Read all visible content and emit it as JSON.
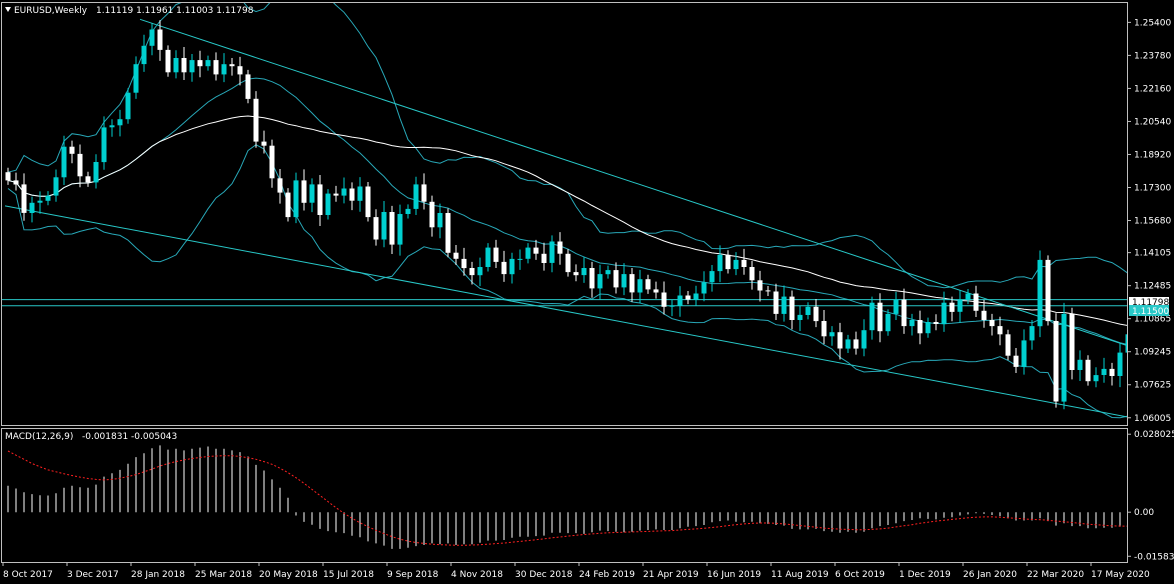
{
  "header": {
    "symbol": "EURUSD,Weekly",
    "ohlc": "1.11119 1.11961 1.11003 1.11798"
  },
  "indicator_header": {
    "name": "MACD(12,26,9)",
    "values": "-0.001831 -0.005043"
  },
  "colors": {
    "background": "#000000",
    "candle_up": "#00d0d0",
    "candle_down": "#ffffff",
    "trendline": "#28c8c8",
    "bollinger": "#28a8b8",
    "moving_average": "#ffffff",
    "macd_hist": "#ffffff",
    "macd_signal": "#ff2020",
    "price_label_bg": "#28c8c8"
  },
  "price_axis": {
    "ticks": [
      "1.25400",
      "1.23780",
      "1.22160",
      "1.20540",
      "1.18920",
      "1.17300",
      "1.15680",
      "1.14105",
      "1.12485",
      "1.10865",
      "1.09245",
      "1.07625",
      "1.06005"
    ],
    "current_labels": [
      "1.11798",
      "1.11500"
    ]
  },
  "macd_axis": {
    "ticks": [
      "0.028025",
      "0.00",
      "-0.015839"
    ]
  },
  "time_axis": {
    "ticks": [
      "8 Oct 2017",
      "3 Dec 2017",
      "28 Jan 2018",
      "25 Mar 2018",
      "20 May 2018",
      "15 Jul 2018",
      "9 Sep 2018",
      "4 Nov 2018",
      "30 Dec 2018",
      "24 Feb 2019",
      "21 Apr 2019",
      "16 Jun 2019",
      "11 Aug 2019",
      "6 Oct 2019",
      "1 Dec 2019",
      "26 Jan 2020",
      "22 Mar 2020",
      "17 May 2020"
    ]
  },
  "chart_data": {
    "type": "candlestick",
    "timeframe": "Weekly",
    "ylim": [
      1.0565,
      1.2635
    ],
    "macd_ylim": [
      -0.0179,
      0.0299
    ],
    "x_start": "8 Oct 2017",
    "x_end": "24 May 2020",
    "closes": [
      1.1765,
      1.1745,
      1.1605,
      1.1655,
      1.1665,
      1.169,
      1.178,
      1.193,
      1.1895,
      1.1785,
      1.1755,
      1.1855,
      1.2025,
      1.2035,
      1.2065,
      1.2195,
      1.2335,
      1.2425,
      1.2505,
      1.2405,
      1.2295,
      1.2365,
      1.2295,
      1.2355,
      1.2325,
      1.2355,
      1.2285,
      1.2335,
      1.2325,
      1.2285,
      1.2165,
      1.1955,
      1.1935,
      1.1775,
      1.1705,
      1.1585,
      1.1765,
      1.1655,
      1.1745,
      1.1595,
      1.17,
      1.169,
      1.1725,
      1.1665,
      1.1735,
      1.1585,
      1.1475,
      1.161,
      1.145,
      1.16,
      1.1625,
      1.1745,
      1.166,
      1.1535,
      1.1605,
      1.141,
      1.138,
      1.1335,
      1.13,
      1.134,
      1.1435,
      1.1365,
      1.1305,
      1.138,
      1.138,
      1.1435,
      1.1405,
      1.136,
      1.1465,
      1.1405,
      1.1315,
      1.13,
      1.1335,
      1.1235,
      1.1305,
      1.1325,
      1.124,
      1.1305,
      1.1215,
      1.128,
      1.123,
      1.1215,
      1.1145,
      1.115,
      1.12,
      1.118,
      1.121,
      1.1265,
      1.132,
      1.14,
      1.133,
      1.1375,
      1.134,
      1.1275,
      1.1225,
      1.122,
      1.111,
      1.1195,
      1.108,
      1.1105,
      1.1145,
      1.1075,
      1.1,
      1.102,
      1.094,
      1.0985,
      1.094,
      1.103,
      1.1165,
      1.1025,
      1.111,
      1.118,
      1.105,
      1.108,
      1.1015,
      1.107,
      1.106,
      1.1165,
      1.112,
      1.118,
      1.121,
      1.1125,
      1.108,
      1.105,
      1.101,
      1.0905,
      1.085,
      1.098,
      1.105,
      1.1375,
      1.1075,
      1.068,
      1.111,
      1.0835,
      1.0885,
      1.078,
      1.081,
      1.084,
      1.0805,
      1.092,
      1.101,
      1.118
    ],
    "macd_histogram": [
      0.0095,
      0.0085,
      0.0072,
      0.0065,
      0.0061,
      0.006,
      0.0068,
      0.0088,
      0.0095,
      0.009,
      0.0088,
      0.0099,
      0.0128,
      0.014,
      0.0152,
      0.0174,
      0.0198,
      0.0212,
      0.023,
      0.024,
      0.0225,
      0.0228,
      0.0222,
      0.0228,
      0.0232,
      0.0236,
      0.0228,
      0.0228,
      0.0222,
      0.0216,
      0.02,
      0.017,
      0.015,
      0.0118,
      0.0088,
      0.0052,
      -0.0012,
      -0.0035,
      -0.0045,
      -0.006,
      -0.0068,
      -0.0072,
      -0.0075,
      -0.0085,
      -0.009,
      -0.0105,
      -0.0112,
      -0.012,
      -0.0132,
      -0.0132,
      -0.0128,
      -0.0122,
      -0.0118,
      -0.0112,
      -0.0115,
      -0.0112,
      -0.0118,
      -0.0115,
      -0.0115,
      -0.011,
      -0.0102,
      -0.0102,
      -0.01,
      -0.0092,
      -0.0088,
      -0.0088,
      -0.0086,
      -0.0084,
      -0.0074,
      -0.0074,
      -0.0075,
      -0.0075,
      -0.0078,
      -0.0072,
      -0.0066,
      -0.0068,
      -0.007,
      -0.0072,
      -0.007,
      -0.0066,
      -0.0064,
      -0.0062,
      -0.0064,
      -0.0064,
      -0.0058,
      -0.0052,
      -0.005,
      -0.0046,
      -0.0036,
      -0.0032,
      -0.003,
      -0.0034,
      -0.0036,
      -0.0034,
      -0.004,
      -0.0042,
      -0.0046,
      -0.0048,
      -0.006,
      -0.0062,
      -0.0062,
      -0.006,
      -0.0068,
      -0.007,
      -0.0074,
      -0.007,
      -0.0074,
      -0.007,
      -0.0058,
      -0.005,
      -0.0046,
      -0.004,
      -0.0032,
      -0.0028,
      -0.0022,
      -0.0024,
      -0.0026,
      -0.002,
      -0.0018,
      -0.0012,
      -0.0008,
      -0.0004,
      -0.0006,
      -0.001,
      -0.0014,
      -0.0022,
      -0.003,
      -0.003,
      -0.003,
      -0.0022,
      -0.0032,
      -0.0048,
      -0.004,
      -0.005,
      -0.005,
      -0.0058,
      -0.0058,
      -0.0056,
      -0.0056,
      -0.0052,
      -0.004,
      -0.0018
    ],
    "macd_signal": [
      0.022,
      0.0205,
      0.019,
      0.0175,
      0.0163,
      0.0152,
      0.0145,
      0.0138,
      0.0132,
      0.0126,
      0.0121,
      0.0118,
      0.0116,
      0.0118,
      0.0122,
      0.0128,
      0.0135,
      0.0145,
      0.0155,
      0.0166,
      0.0175,
      0.0182,
      0.0188,
      0.0193,
      0.0197,
      0.02,
      0.0202,
      0.0203,
      0.0203,
      0.02,
      0.0196,
      0.019,
      0.0182,
      0.0172,
      0.0158,
      0.0142,
      0.0124,
      0.0104,
      0.0082,
      0.006,
      0.0038,
      0.0016,
      -0.0004,
      -0.0022,
      -0.0038,
      -0.0052,
      -0.0065,
      -0.0077,
      -0.0088,
      -0.0097,
      -0.0104,
      -0.0109,
      -0.0112,
      -0.0115,
      -0.0117,
      -0.0118,
      -0.0119,
      -0.0119,
      -0.0118,
      -0.0117,
      -0.0115,
      -0.0113,
      -0.0111,
      -0.0108,
      -0.0105,
      -0.0102,
      -0.0099,
      -0.0096,
      -0.0092,
      -0.0089,
      -0.0086,
      -0.0083,
      -0.008,
      -0.0078,
      -0.0076,
      -0.0074,
      -0.0073,
      -0.0072,
      -0.0071,
      -0.007,
      -0.0069,
      -0.0068,
      -0.0067,
      -0.0066,
      -0.0064,
      -0.0062,
      -0.006,
      -0.0058,
      -0.0055,
      -0.0052,
      -0.0048,
      -0.0045,
      -0.0042,
      -0.004,
      -0.0039,
      -0.0039,
      -0.004,
      -0.0042,
      -0.0045,
      -0.0048,
      -0.0051,
      -0.0054,
      -0.0057,
      -0.0059,
      -0.0061,
      -0.0062,
      -0.0063,
      -0.0063,
      -0.0062,
      -0.006,
      -0.0057,
      -0.0053,
      -0.0049,
      -0.0045,
      -0.004,
      -0.0036,
      -0.0032,
      -0.0029,
      -0.0026,
      -0.0023,
      -0.002,
      -0.0018,
      -0.0017,
      -0.0017,
      -0.0018,
      -0.002,
      -0.0022,
      -0.0024,
      -0.0026,
      -0.0027,
      -0.0029,
      -0.0032,
      -0.0034,
      -0.0037,
      -0.004,
      -0.0043,
      -0.0045,
      -0.0047,
      -0.0049,
      -0.005,
      -0.005,
      -0.005
    ]
  }
}
